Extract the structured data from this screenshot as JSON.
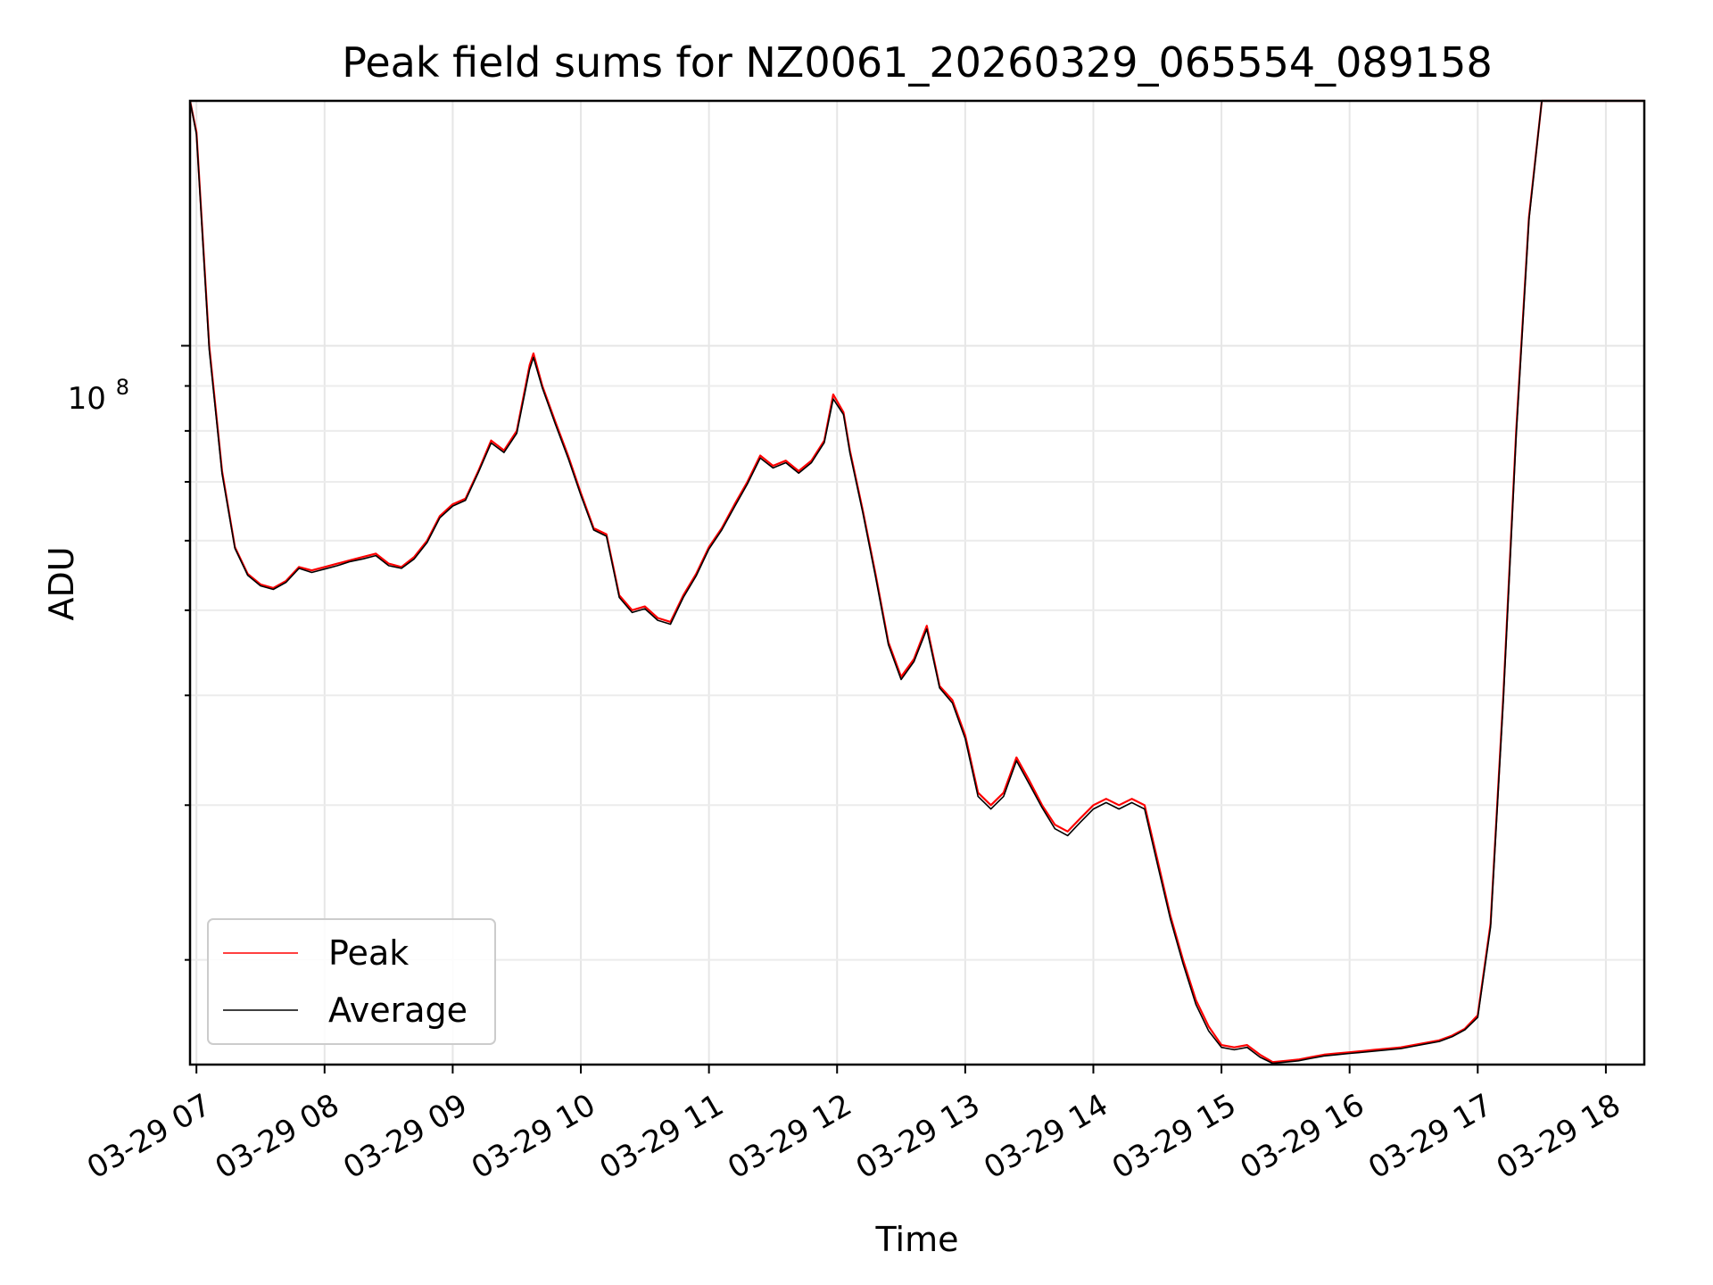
{
  "chart_data": {
    "type": "line",
    "title": "Peak field sums for NZ0061_20260329_065554_089158",
    "xlabel": "Time",
    "ylabel": "ADU",
    "yscale": "log",
    "y_major_tick_label": {
      "base": "10",
      "exponent": "8"
    },
    "xticks": [
      "03-29 07",
      "03-29 08",
      "03-29 09",
      "03-29 10",
      "03-29 11",
      "03-29 12",
      "03-29 13",
      "03-29 14",
      "03-29 15",
      "03-29 16",
      "03-29 17",
      "03-29 18"
    ],
    "xlim_hours": [
      6.95,
      18.3
    ],
    "ylim": [
      15200000,
      190000000
    ],
    "grid": true,
    "legend_position": "lower-left",
    "series": [
      {
        "name": "Peak",
        "color": "#ff0000",
        "x_hours": [
          6.95,
          7.0,
          7.1,
          7.2,
          7.3,
          7.4,
          7.5,
          7.6,
          7.7,
          7.8,
          7.9,
          8.0,
          8.1,
          8.2,
          8.3,
          8.4,
          8.5,
          8.6,
          8.7,
          8.8,
          8.9,
          9.0,
          9.1,
          9.2,
          9.3,
          9.4,
          9.5,
          9.6,
          9.63,
          9.7,
          9.8,
          9.9,
          10.0,
          10.1,
          10.2,
          10.3,
          10.4,
          10.5,
          10.6,
          10.7,
          10.8,
          10.9,
          11.0,
          11.1,
          11.2,
          11.3,
          11.4,
          11.5,
          11.6,
          11.7,
          11.8,
          11.9,
          11.97,
          12.05,
          12.1,
          12.2,
          12.3,
          12.4,
          12.5,
          12.6,
          12.7,
          12.8,
          12.9,
          13.0,
          13.1,
          13.2,
          13.3,
          13.4,
          13.5,
          13.6,
          13.7,
          13.8,
          13.9,
          14.0,
          14.1,
          14.2,
          14.3,
          14.4,
          14.5,
          14.6,
          14.7,
          14.8,
          14.9,
          15.0,
          15.1,
          15.2,
          15.3,
          15.4,
          15.5,
          15.6,
          15.7,
          15.8,
          15.9,
          16.0,
          16.1,
          16.2,
          16.3,
          16.4,
          16.5,
          16.6,
          16.7,
          16.8,
          16.9,
          17.0,
          17.1,
          17.2,
          17.3,
          17.4,
          17.5,
          17.6,
          17.7,
          17.8,
          17.9,
          18.0,
          18.1,
          18.2,
          18.3
        ],
        "values": [
          190000000,
          175000000,
          100000000,
          72000000,
          59000000,
          55000000,
          53500000,
          53000000,
          54000000,
          56000000,
          55500000,
          56000000,
          56500000,
          57000000,
          57500000,
          58000000,
          56500000,
          56000000,
          57500000,
          60000000,
          64000000,
          66000000,
          67000000,
          72000000,
          78000000,
          76000000,
          80000000,
          95000000,
          98000000,
          90000000,
          82000000,
          75000000,
          68000000,
          62000000,
          61000000,
          52000000,
          50000000,
          50500000,
          49000000,
          48500000,
          52000000,
          55000000,
          59000000,
          62000000,
          66000000,
          70000000,
          75000000,
          73000000,
          74000000,
          72000000,
          74000000,
          78000000,
          88000000,
          84000000,
          76000000,
          65000000,
          55000000,
          46000000,
          42000000,
          44000000,
          48000000,
          41000000,
          39500000,
          36000000,
          31000000,
          30000000,
          31000000,
          34000000,
          32000000,
          30000000,
          28500000,
          28000000,
          29000000,
          30000000,
          30500000,
          30000000,
          30500000,
          30000000,
          26000000,
          22500000,
          20000000,
          18000000,
          16800000,
          16000000,
          15900000,
          16000000,
          15600000,
          15300000,
          15350000,
          15400000,
          15500000,
          15600000,
          15650000,
          15700000,
          15750000,
          15800000,
          15850000,
          15900000,
          16000000,
          16100000,
          16200000,
          16400000,
          16700000,
          17300000,
          22000000,
          40000000,
          80000000,
          140000000,
          190000000,
          190000000,
          190000000,
          190000000,
          190000000,
          190000000,
          190000000,
          190000000,
          190000000
        ]
      },
      {
        "name": "Average",
        "color": "#000000",
        "x_hours": [
          6.95,
          7.0,
          7.1,
          7.2,
          7.3,
          7.4,
          7.5,
          7.6,
          7.7,
          7.8,
          7.9,
          8.0,
          8.1,
          8.2,
          8.3,
          8.4,
          8.5,
          8.6,
          8.7,
          8.8,
          8.9,
          9.0,
          9.1,
          9.2,
          9.3,
          9.4,
          9.5,
          9.6,
          9.63,
          9.7,
          9.8,
          9.9,
          10.0,
          10.1,
          10.2,
          10.3,
          10.4,
          10.5,
          10.6,
          10.7,
          10.8,
          10.9,
          11.0,
          11.1,
          11.2,
          11.3,
          11.4,
          11.5,
          11.6,
          11.7,
          11.8,
          11.9,
          11.97,
          12.05,
          12.1,
          12.2,
          12.3,
          12.4,
          12.5,
          12.6,
          12.7,
          12.8,
          12.9,
          13.0,
          13.1,
          13.2,
          13.3,
          13.4,
          13.5,
          13.6,
          13.7,
          13.8,
          13.9,
          14.0,
          14.1,
          14.2,
          14.3,
          14.4,
          14.5,
          14.6,
          14.7,
          14.8,
          14.9,
          15.0,
          15.1,
          15.2,
          15.3,
          15.4,
          15.5,
          15.6,
          15.7,
          15.8,
          15.9,
          16.0,
          16.1,
          16.2,
          16.3,
          16.4,
          16.5,
          16.6,
          16.7,
          16.8,
          16.9,
          17.0,
          17.1,
          17.2,
          17.3,
          17.4,
          17.5,
          17.6,
          17.7,
          17.8,
          17.9,
          18.0,
          18.1,
          18.2,
          18.3
        ],
        "values": [
          190000000,
          174000000,
          99000000,
          71500000,
          58800000,
          54800000,
          53300000,
          52800000,
          53800000,
          55800000,
          55200000,
          55700000,
          56200000,
          56800000,
          57200000,
          57700000,
          56200000,
          55800000,
          57200000,
          59700000,
          63700000,
          65700000,
          66700000,
          71700000,
          77500000,
          75600000,
          79500000,
          94000000,
          97000000,
          89500000,
          81500000,
          74500000,
          67600000,
          61700000,
          60700000,
          51700000,
          49700000,
          50200000,
          48700000,
          48200000,
          51700000,
          54700000,
          58700000,
          61700000,
          65600000,
          69600000,
          74500000,
          72600000,
          73600000,
          71600000,
          73600000,
          77600000,
          87000000,
          83500000,
          75500000,
          64600000,
          54600000,
          45700000,
          41700000,
          43700000,
          47600000,
          40800000,
          39200000,
          35700000,
          30700000,
          29700000,
          30700000,
          33700000,
          31700000,
          29800000,
          28200000,
          27700000,
          28700000,
          29700000,
          30200000,
          29700000,
          30200000,
          29700000,
          25700000,
          22300000,
          19800000,
          17800000,
          16600000,
          15900000,
          15800000,
          15900000,
          15500000,
          15250000,
          15300000,
          15350000,
          15450000,
          15550000,
          15600000,
          15650000,
          15700000,
          15750000,
          15800000,
          15850000,
          15950000,
          16050000,
          16150000,
          16350000,
          16650000,
          17200000,
          21800000,
          39500000,
          79000000,
          139000000,
          190000000,
          190000000,
          190000000,
          190000000,
          190000000,
          190000000,
          190000000,
          190000000,
          190000000
        ]
      }
    ]
  }
}
